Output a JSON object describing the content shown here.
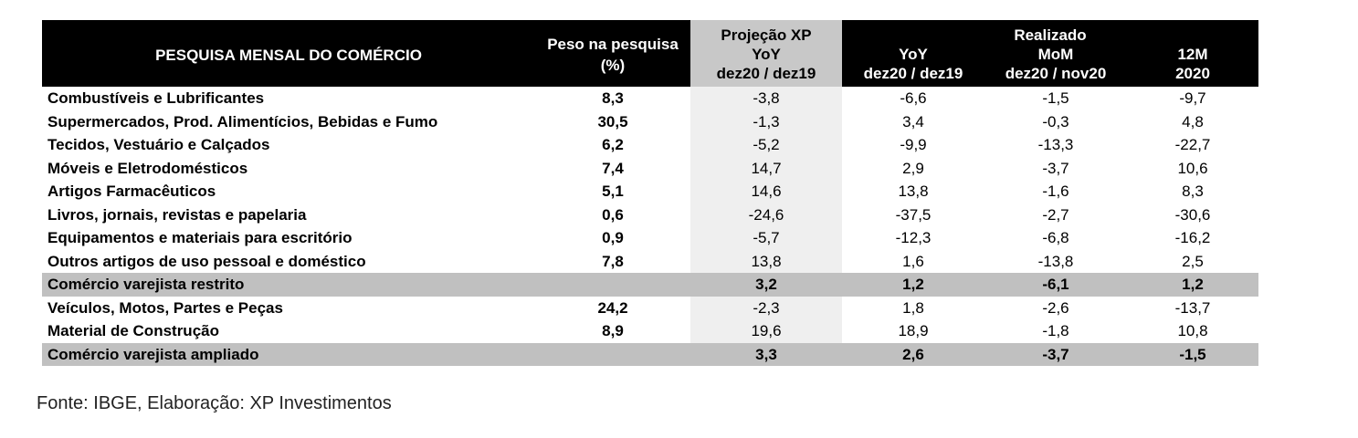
{
  "table": {
    "header": {
      "title": "PESQUISA MENSAL DO COMÉRCIO",
      "peso_line1": "Peso na pesquisa",
      "peso_line2": "(%)",
      "projecao_line1": "Projeção XP",
      "projecao_line2": "YoY",
      "projecao_line3": "dez20 / dez19",
      "realizado": "Realizado",
      "yoy_line1": "YoY",
      "yoy_line2": "dez20 / dez19",
      "mom_line1": "MoM",
      "mom_line2": "dez20 / nov20",
      "m12_line1": "12M",
      "m12_line2": "2020"
    },
    "rows": [
      {
        "label": "Combustíveis e Lubrificantes",
        "peso": "8,3",
        "proj": "-3,8",
        "yoy": "-6,6",
        "mom": "-1,5",
        "m12": "-9,7",
        "total": false
      },
      {
        "label": "Supermercados, Prod. Alimentícios, Bebidas e Fumo",
        "peso": "30,5",
        "proj": "-1,3",
        "yoy": "3,4",
        "mom": "-0,3",
        "m12": "4,8",
        "total": false
      },
      {
        "label": "Tecidos, Vestuário e Calçados",
        "peso": "6,2",
        "proj": "-5,2",
        "yoy": "-9,9",
        "mom": "-13,3",
        "m12": "-22,7",
        "total": false
      },
      {
        "label": "Móveis e Eletrodomésticos",
        "peso": "7,4",
        "proj": "14,7",
        "yoy": "2,9",
        "mom": "-3,7",
        "m12": "10,6",
        "total": false
      },
      {
        "label": "Artigos Farmacêuticos",
        "peso": "5,1",
        "proj": "14,6",
        "yoy": "13,8",
        "mom": "-1,6",
        "m12": "8,3",
        "total": false
      },
      {
        "label": "Livros, jornais, revistas e papelaria",
        "peso": "0,6",
        "proj": "-24,6",
        "yoy": "-37,5",
        "mom": "-2,7",
        "m12": "-30,6",
        "total": false
      },
      {
        "label": "Equipamentos e materiais para escritório",
        "peso": "0,9",
        "proj": "-5,7",
        "yoy": "-12,3",
        "mom": "-6,8",
        "m12": "-16,2",
        "total": false
      },
      {
        "label": "Outros artigos de uso pessoal e doméstico",
        "peso": "7,8",
        "proj": "13,8",
        "yoy": "1,6",
        "mom": "-13,8",
        "m12": "2,5",
        "total": false
      },
      {
        "label": "Comércio varejista restrito",
        "peso": "",
        "proj": "3,2",
        "yoy": "1,2",
        "mom": "-6,1",
        "m12": "1,2",
        "total": true
      },
      {
        "label": "Veículos, Motos, Partes e Peças",
        "peso": "24,2",
        "proj": "-2,3",
        "yoy": "1,8",
        "mom": "-2,6",
        "m12": "-13,7",
        "total": false
      },
      {
        "label": "Material de Construção",
        "peso": "8,9",
        "proj": "19,6",
        "yoy": "18,9",
        "mom": "-1,8",
        "m12": "10,8",
        "total": false
      },
      {
        "label": "Comércio varejista ampliado",
        "peso": "",
        "proj": "3,3",
        "yoy": "2,6",
        "mom": "-3,7",
        "m12": "-1,5",
        "total": true
      }
    ]
  },
  "source": "Fonte: IBGE, Elaboração: XP Investimentos"
}
